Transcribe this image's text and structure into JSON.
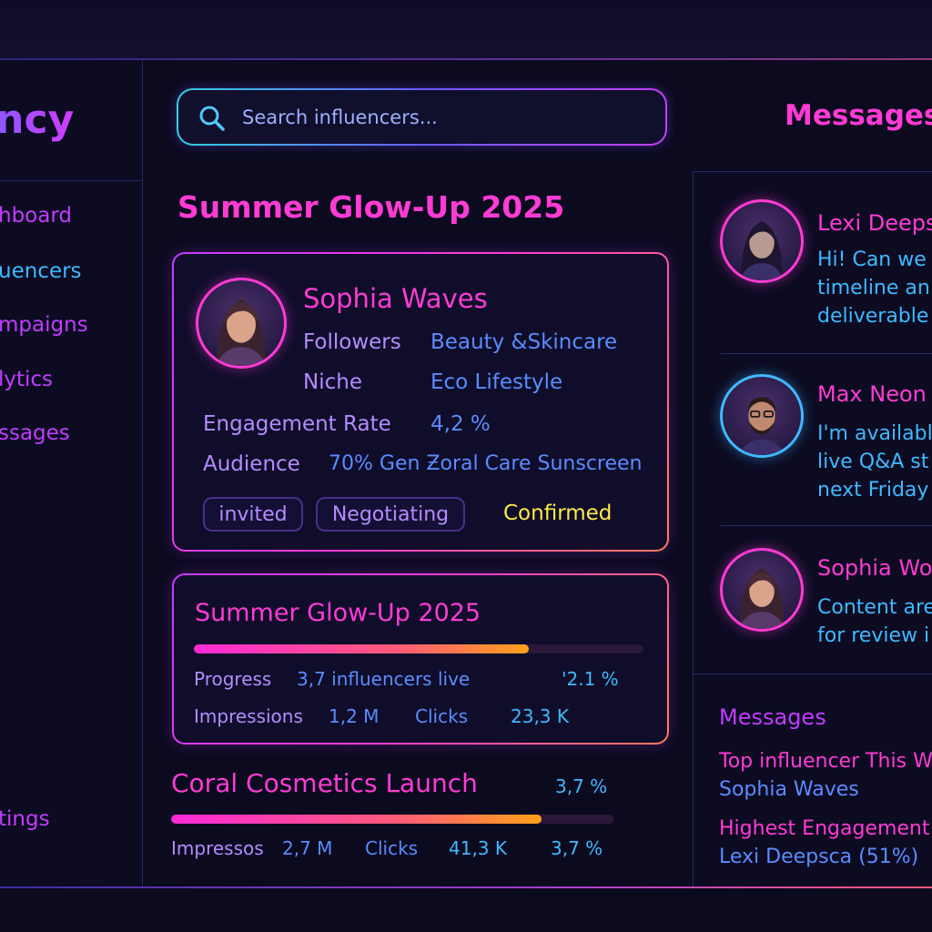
{
  "app": {
    "brand": "uency"
  },
  "sidebar": {
    "items": [
      {
        "label": "hboard"
      },
      {
        "label": "uencers"
      },
      {
        "label": "mpaigns"
      },
      {
        "label": "lytics"
      },
      {
        "label": "ssages"
      },
      {
        "label": "tings"
      }
    ]
  },
  "search": {
    "placeholder": "Search influencers..."
  },
  "campaign": {
    "title": "Summer Glow-Up 2025"
  },
  "influencer": {
    "name": "Sophia Waves",
    "followers_label": "Followers",
    "followers_value": "Beauty &Skincare",
    "niche_label": "Niche",
    "niche_value": "Eco Lifestyle",
    "engagement_label": "Engagement Rate",
    "engagement_value": "4,2 %",
    "audience_label": "Audience",
    "audience_value": "70% Gen Ƶoral Care Sunscreen",
    "statuses": [
      {
        "label": "invited"
      },
      {
        "label": "Negotiating"
      },
      {
        "label": "Confirmed",
        "color": "#ffe94a"
      }
    ]
  },
  "campaign_card": {
    "title": "Summer Glow-Up 2025",
    "progress_fraction": 0.745,
    "progress_label": "Progress",
    "progress_value": "3,7 influencers live",
    "progress_pct": "ꞌ2.1 %",
    "impressions_label": "Impressions",
    "impressions_value": "1,2 M",
    "clicks_label": "Clicks",
    "clicks_value": "23,3 K"
  },
  "campaign_two": {
    "title": "Coral Cosmetics Launch",
    "pct_top": "3,7  %",
    "progress_fraction": 0.835,
    "impressions_label": "Impressos",
    "impressions_value": "2,7 M",
    "clicks_label": "Clicks",
    "clicks_value": "41,3 K",
    "pct": "3,7 %"
  },
  "messages": {
    "title": "Messages",
    "threads": [
      {
        "name": "Lexi Deeps",
        "lines": [
          "Hi! Can we",
          "timeline an",
          "deliverable"
        ]
      },
      {
        "name": "Max Neon",
        "lines": [
          "I'm availabl",
          "live Q&A st",
          "next Friday"
        ]
      },
      {
        "name": "Sophia Wo",
        "lines": [
          "Content are",
          "for review i"
        ]
      }
    ],
    "summary_title": "Messages",
    "summary": [
      {
        "line1": "Top influencer This W",
        "line2": "Sophia Waves"
      },
      {
        "line1": "Highest Engagement",
        "line2": "Lexi Deepsca (51%)"
      }
    ]
  },
  "colors": {
    "accent_pink": "#ff3bd4",
    "accent_blue": "#3fb9ff",
    "accent_purple": "#b48cff",
    "confirmed_yellow": "#ffe94a",
    "background": "#0b0a1f"
  }
}
